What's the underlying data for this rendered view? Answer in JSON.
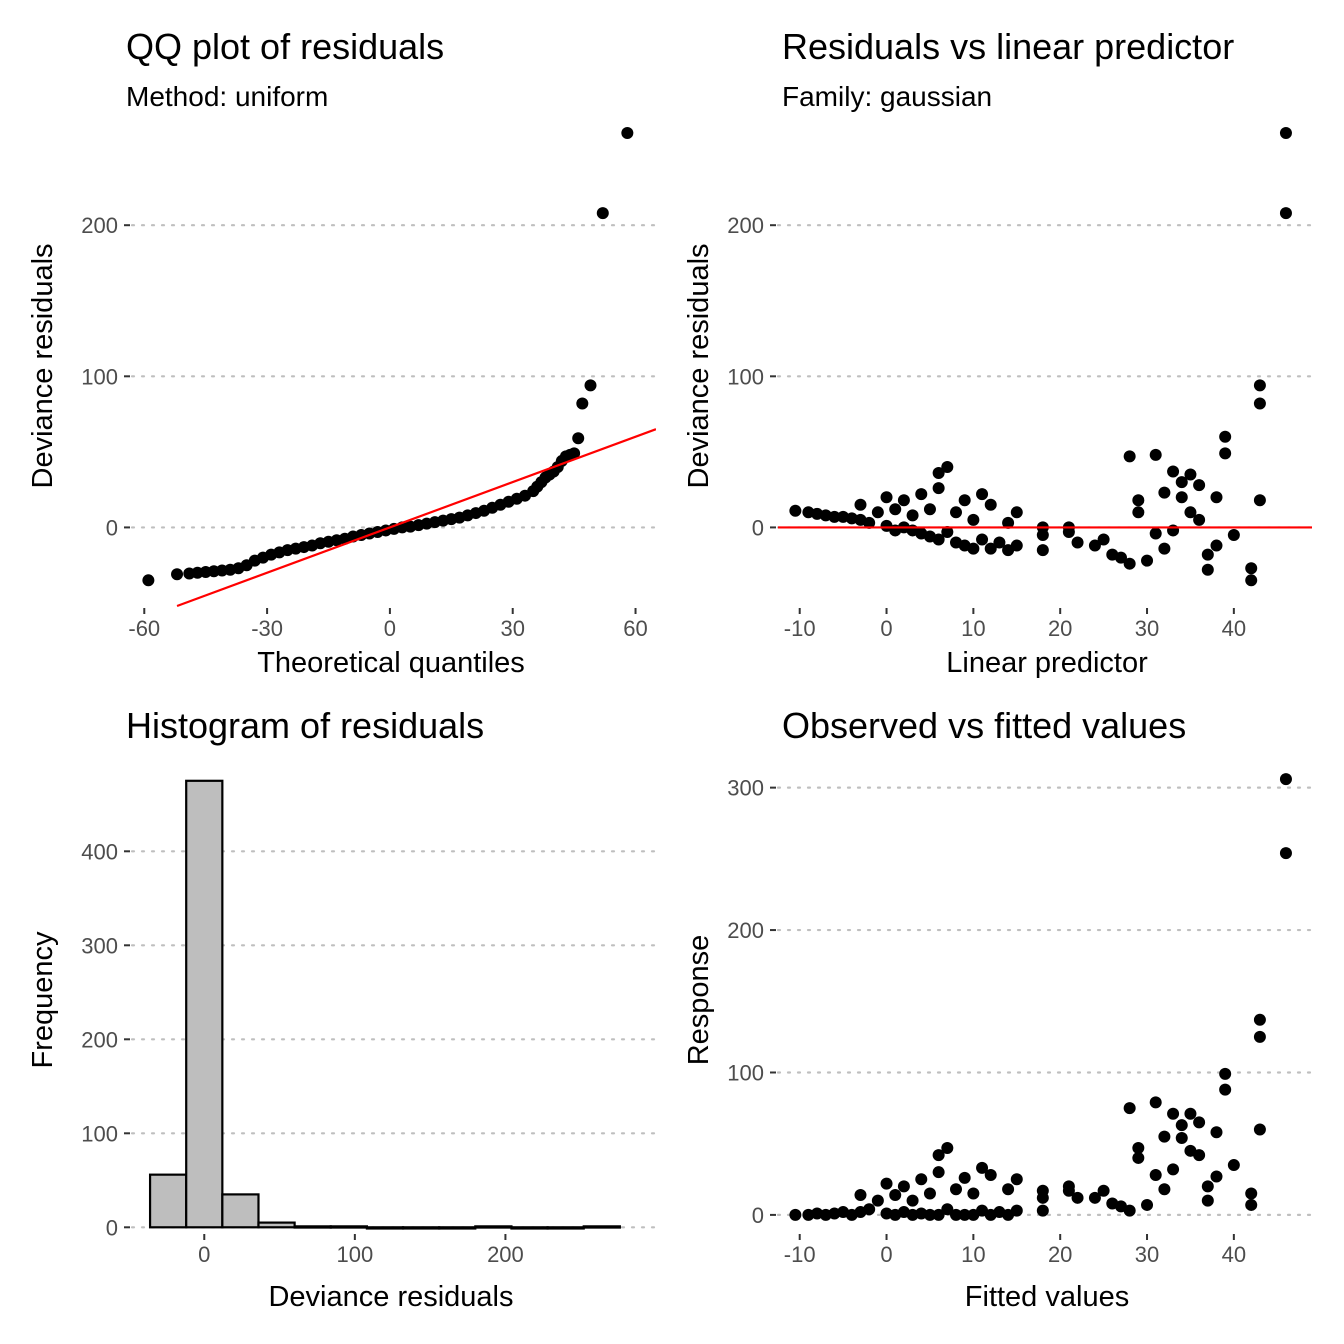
{
  "colors": {
    "points": "#000000",
    "refline": "#ff0000",
    "bars": "#bebebe",
    "bar_outline": "#000000",
    "grid": "#bfbfbf"
  },
  "chart_data": [
    {
      "type": "scatter",
      "title": "QQ plot of residuals",
      "subtitle": "Method: uniform",
      "xlabel": "Theoretical quantiles",
      "ylabel": "Deviance residuals",
      "xlim": [
        -63,
        65
      ],
      "ylim": [
        -52,
        263
      ],
      "xticks": [
        -60,
        -30,
        0,
        30,
        60
      ],
      "xtick_labels": [
        "-60",
        "-30",
        "0",
        "30",
        "60"
      ],
      "yticks": [
        0,
        100,
        200
      ],
      "ytick_labels": [
        "0",
        "100",
        "200"
      ],
      "grid": "horizontal dotted",
      "reference_line": {
        "slope": 1,
        "intercept": 0
      },
      "series": [
        {
          "points": [
            [
              -59,
              -35
            ],
            [
              -52,
              -31
            ],
            [
              -49,
              -30.5
            ],
            [
              -47,
              -30
            ],
            [
              -45,
              -29.5
            ],
            [
              -43,
              -29
            ],
            [
              -41,
              -28.5
            ],
            [
              -39,
              -28
            ],
            [
              -37,
              -27
            ],
            [
              -35,
              -25
            ],
            [
              -33,
              -22
            ],
            [
              -31,
              -20
            ],
            [
              -29,
              -18
            ],
            [
              -27,
              -16.5
            ],
            [
              -25,
              -15
            ],
            [
              -23,
              -14
            ],
            [
              -21,
              -13
            ],
            [
              -19,
              -12
            ],
            [
              -17,
              -10.5
            ],
            [
              -15,
              -9.5
            ],
            [
              -13,
              -8.5
            ],
            [
              -11,
              -7.5
            ],
            [
              -9,
              -6
            ],
            [
              -7,
              -5
            ],
            [
              -5,
              -4
            ],
            [
              -3,
              -3
            ],
            [
              -1,
              -2
            ],
            [
              1,
              -1
            ],
            [
              3,
              0
            ],
            [
              5,
              0.5
            ],
            [
              7,
              1.5
            ],
            [
              9,
              2.5
            ],
            [
              11,
              3.5
            ],
            [
              13,
              4.5
            ],
            [
              15,
              5.5
            ],
            [
              17,
              6.5
            ],
            [
              19,
              8
            ],
            [
              21,
              9.5
            ],
            [
              23,
              11
            ],
            [
              25,
              13
            ],
            [
              27,
              15
            ],
            [
              29,
              17
            ],
            [
              31,
              19
            ],
            [
              33,
              21
            ],
            [
              35,
              24
            ],
            [
              36,
              27
            ],
            [
              37,
              30
            ],
            [
              38,
              33
            ],
            [
              39,
              35
            ],
            [
              40,
              37
            ],
            [
              41,
              40
            ],
            [
              42,
              44
            ],
            [
              43,
              47
            ],
            [
              44,
              48
            ],
            [
              45,
              49
            ],
            [
              46,
              59
            ],
            [
              47,
              82
            ],
            [
              49,
              94
            ],
            [
              52,
              208
            ],
            [
              58,
              261
            ]
          ]
        }
      ]
    },
    {
      "type": "scatter",
      "title": "Residuals vs linear predictor",
      "subtitle": "Family: gaussian",
      "xlabel": "Linear predictor",
      "ylabel": "Deviance residuals",
      "xlim": [
        -12.5,
        49
      ],
      "ylim": [
        -52,
        263
      ],
      "xticks": [
        -10,
        0,
        10,
        20,
        30,
        40
      ],
      "xtick_labels": [
        "-10",
        "0",
        "10",
        "20",
        "30",
        "40"
      ],
      "yticks": [
        0,
        100,
        200
      ],
      "ytick_labels": [
        "0",
        "100",
        "200"
      ],
      "grid": "horizontal dotted",
      "reference_line": {
        "slope": 0,
        "intercept": 0
      },
      "series": [
        {
          "points": [
            [
              -10.5,
              11
            ],
            [
              -9,
              10
            ],
            [
              -8,
              9
            ],
            [
              -7,
              8
            ],
            [
              -6,
              7
            ],
            [
              -5,
              7
            ],
            [
              -4,
              6
            ],
            [
              -3,
              5
            ],
            [
              -3,
              15
            ],
            [
              -2,
              3
            ],
            [
              -1,
              10
            ],
            [
              0,
              1
            ],
            [
              0,
              20
            ],
            [
              1,
              -2
            ],
            [
              1,
              12
            ],
            [
              2,
              0
            ],
            [
              2,
              18
            ],
            [
              3,
              -2
            ],
            [
              3,
              8
            ],
            [
              4,
              -4
            ],
            [
              4,
              22
            ],
            [
              5,
              -6
            ],
            [
              5,
              12
            ],
            [
              6,
              26
            ],
            [
              6,
              -8
            ],
            [
              6,
              36
            ],
            [
              7,
              40
            ],
            [
              7,
              -3
            ],
            [
              8,
              10
            ],
            [
              8,
              -10
            ],
            [
              9,
              18
            ],
            [
              9,
              -12
            ],
            [
              10,
              5
            ],
            [
              10,
              -14
            ],
            [
              11,
              22
            ],
            [
              11,
              -8
            ],
            [
              12,
              15
            ],
            [
              12,
              -14
            ],
            [
              13,
              -10
            ],
            [
              14,
              -15
            ],
            [
              14,
              3
            ],
            [
              15,
              10
            ],
            [
              15,
              -12
            ],
            [
              18,
              -5
            ],
            [
              18,
              0
            ],
            [
              18,
              -15
            ],
            [
              21,
              -3
            ],
            [
              21,
              0
            ],
            [
              22,
              -10
            ],
            [
              24,
              -12
            ],
            [
              25,
              -8
            ],
            [
              26,
              -18
            ],
            [
              27,
              -20
            ],
            [
              28,
              47
            ],
            [
              28,
              -24
            ],
            [
              29,
              10
            ],
            [
              29,
              18
            ],
            [
              30,
              -22
            ],
            [
              31,
              48
            ],
            [
              31,
              -4
            ],
            [
              32,
              23
            ],
            [
              32,
              -14
            ],
            [
              33,
              37
            ],
            [
              33,
              -2
            ],
            [
              34,
              30
            ],
            [
              34,
              20
            ],
            [
              35,
              35
            ],
            [
              35,
              10
            ],
            [
              36,
              28
            ],
            [
              36,
              5
            ],
            [
              37,
              -18
            ],
            [
              37,
              -28
            ],
            [
              38,
              20
            ],
            [
              38,
              -12
            ],
            [
              39,
              60
            ],
            [
              39,
              49
            ],
            [
              40,
              -5
            ],
            [
              42,
              -27
            ],
            [
              42,
              -35
            ],
            [
              43,
              94
            ],
            [
              43,
              82
            ],
            [
              43,
              18
            ],
            [
              46,
              261
            ],
            [
              46,
              208
            ]
          ]
        }
      ]
    },
    {
      "type": "bar",
      "title": "Histogram of residuals",
      "xlabel": "Deviance residuals",
      "ylabel": "Frequency",
      "xlim": [
        -48,
        300
      ],
      "ylim": [
        -5,
        495
      ],
      "xticks": [
        0,
        100,
        200
      ],
      "xtick_labels": [
        "0",
        "100",
        "200"
      ],
      "yticks": [
        0,
        100,
        200,
        300,
        400
      ],
      "ytick_labels": [
        "0",
        "100",
        "200",
        "300",
        "400"
      ],
      "grid": "horizontal dotted",
      "bins": [
        {
          "x0": -36,
          "x1": -12,
          "count": 56
        },
        {
          "x0": -12,
          "x1": 12,
          "count": 475
        },
        {
          "x0": 12,
          "x1": 36,
          "count": 35
        },
        {
          "x0": 36,
          "x1": 60,
          "count": 5
        },
        {
          "x0": 60,
          "x1": 84,
          "count": 1
        },
        {
          "x0": 84,
          "x1": 108,
          "count": 1
        },
        {
          "x0": 108,
          "x1": 132,
          "count": 0
        },
        {
          "x0": 132,
          "x1": 156,
          "count": 0
        },
        {
          "x0": 156,
          "x1": 180,
          "count": 0
        },
        {
          "x0": 180,
          "x1": 204,
          "count": 1
        },
        {
          "x0": 204,
          "x1": 228,
          "count": 0
        },
        {
          "x0": 228,
          "x1": 252,
          "count": 0
        },
        {
          "x0": 252,
          "x1": 276,
          "count": 1
        }
      ]
    },
    {
      "type": "scatter",
      "title": "Observed vs fitted values",
      "xlabel": "Fitted values",
      "ylabel": "Response",
      "xlim": [
        -12.5,
        49
      ],
      "ylim": [
        -12,
        318
      ],
      "xticks": [
        -10,
        0,
        10,
        20,
        30,
        40
      ],
      "xtick_labels": [
        "-10",
        "0",
        "10",
        "20",
        "30",
        "40"
      ],
      "yticks": [
        0,
        100,
        200,
        300
      ],
      "ytick_labels": [
        "0",
        "100",
        "200",
        "300"
      ],
      "grid": "horizontal dotted",
      "series": [
        {
          "points": [
            [
              -10.5,
              0
            ],
            [
              -9,
              0
            ],
            [
              -8,
              1
            ],
            [
              -7,
              0
            ],
            [
              -6,
              1
            ],
            [
              -5,
              2
            ],
            [
              -4,
              0
            ],
            [
              -3,
              2
            ],
            [
              -3,
              14
            ],
            [
              -2,
              4
            ],
            [
              -1,
              10
            ],
            [
              0,
              1
            ],
            [
              0,
              22
            ],
            [
              1,
              0
            ],
            [
              1,
              14
            ],
            [
              2,
              2
            ],
            [
              2,
              20
            ],
            [
              3,
              0
            ],
            [
              3,
              10
            ],
            [
              4,
              1
            ],
            [
              4,
              25
            ],
            [
              5,
              0
            ],
            [
              5,
              15
            ],
            [
              6,
              30
            ],
            [
              6,
              0
            ],
            [
              6,
              42
            ],
            [
              7,
              47
            ],
            [
              7,
              4
            ],
            [
              8,
              18
            ],
            [
              8,
              0
            ],
            [
              9,
              26
            ],
            [
              9,
              0
            ],
            [
              10,
              15
            ],
            [
              10,
              0
            ],
            [
              11,
              33
            ],
            [
              11,
              3
            ],
            [
              12,
              28
            ],
            [
              12,
              0
            ],
            [
              13,
              2
            ],
            [
              14,
              0
            ],
            [
              14,
              18
            ],
            [
              15,
              25
            ],
            [
              15,
              3
            ],
            [
              18,
              12
            ],
            [
              18,
              17
            ],
            [
              18,
              3
            ],
            [
              21,
              17
            ],
            [
              21,
              20
            ],
            [
              22,
              12
            ],
            [
              24,
              12
            ],
            [
              25,
              17
            ],
            [
              26,
              8
            ],
            [
              27,
              6
            ],
            [
              28,
              75
            ],
            [
              28,
              3
            ],
            [
              29,
              40
            ],
            [
              29,
              47
            ],
            [
              30,
              7
            ],
            [
              31,
              79
            ],
            [
              31,
              28
            ],
            [
              32,
              55
            ],
            [
              32,
              18
            ],
            [
              33,
              71
            ],
            [
              33,
              32
            ],
            [
              34,
              63
            ],
            [
              34,
              54
            ],
            [
              35,
              71
            ],
            [
              35,
              45
            ],
            [
              36,
              65
            ],
            [
              36,
              42
            ],
            [
              37,
              20
            ],
            [
              37,
              10
            ],
            [
              38,
              58
            ],
            [
              38,
              27
            ],
            [
              39,
              99
            ],
            [
              39,
              88
            ],
            [
              40,
              35
            ],
            [
              42,
              15
            ],
            [
              42,
              7
            ],
            [
              43,
              137
            ],
            [
              43,
              125
            ],
            [
              43,
              60
            ],
            [
              46,
              306
            ],
            [
              46,
              254
            ]
          ]
        }
      ]
    }
  ]
}
